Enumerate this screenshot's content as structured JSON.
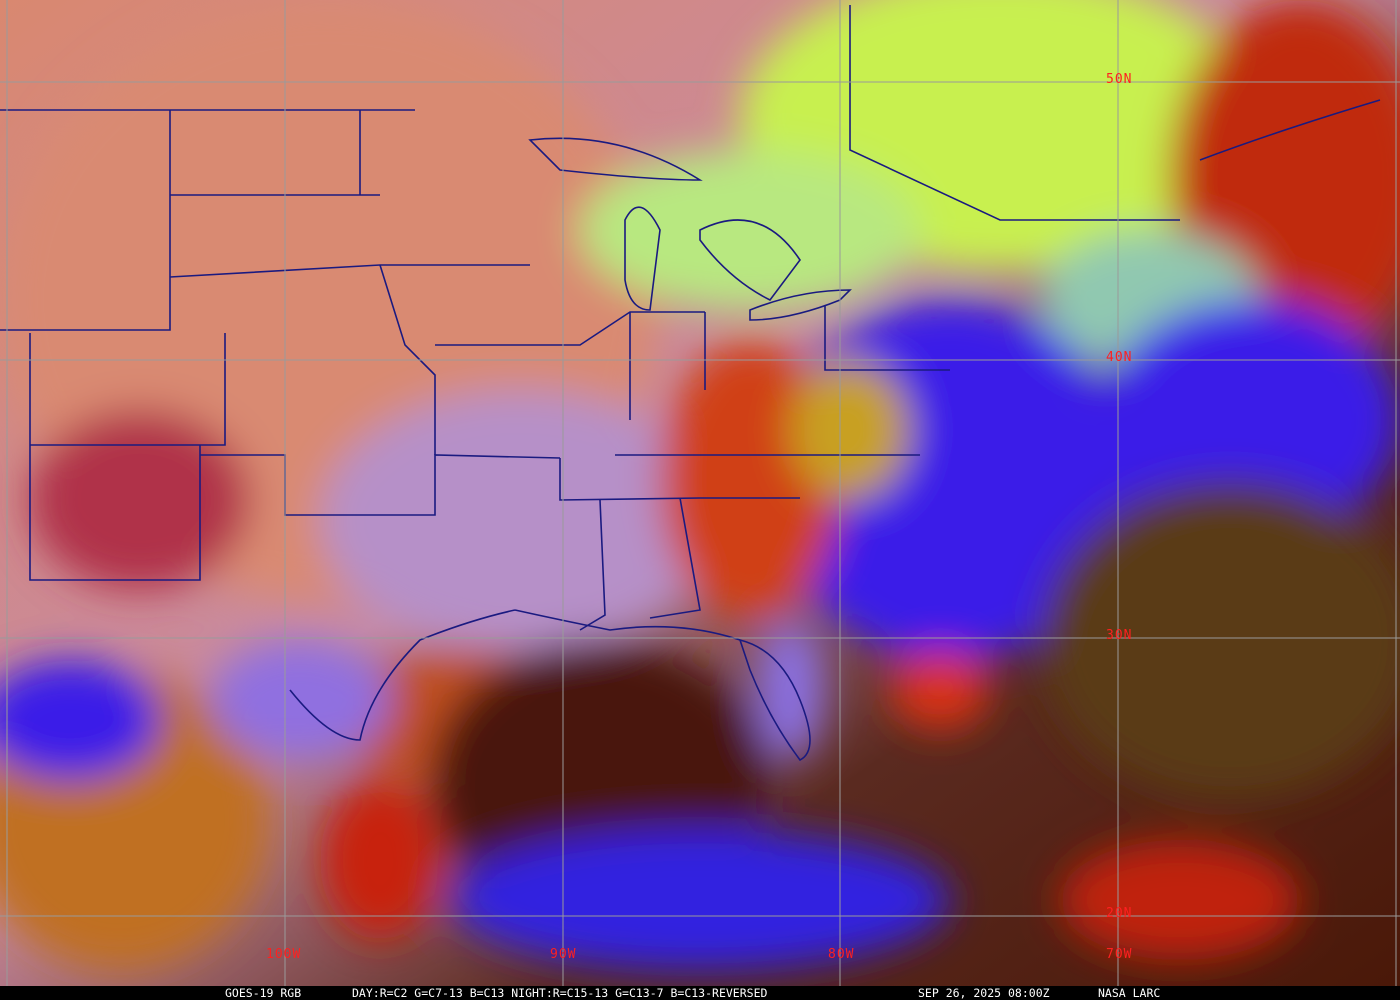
{
  "caption": {
    "product": "GOES-19 RGB",
    "recipe": "DAY:R=C2 G=C7-13 B=C13 NIGHT:R=C15-13 G=C13-7 B=C13-REVERSED",
    "timestamp": "SEP 26, 2025 08:00Z",
    "credit": "NASA LARC"
  },
  "grid_labels": {
    "latitudes": [
      "50N",
      "40N",
      "30N",
      "20N"
    ],
    "longitudes": [
      "100W",
      "90W",
      "80W",
      "70W"
    ]
  },
  "colors": {
    "label": "#ff2020",
    "gridline": "#9a9a9a",
    "borders": "#1a1a80",
    "land_clear": "#d98a70",
    "low_cloud": "#c8f050",
    "ocean": "#4a1a10",
    "high_cloud": "#3020f0"
  }
}
